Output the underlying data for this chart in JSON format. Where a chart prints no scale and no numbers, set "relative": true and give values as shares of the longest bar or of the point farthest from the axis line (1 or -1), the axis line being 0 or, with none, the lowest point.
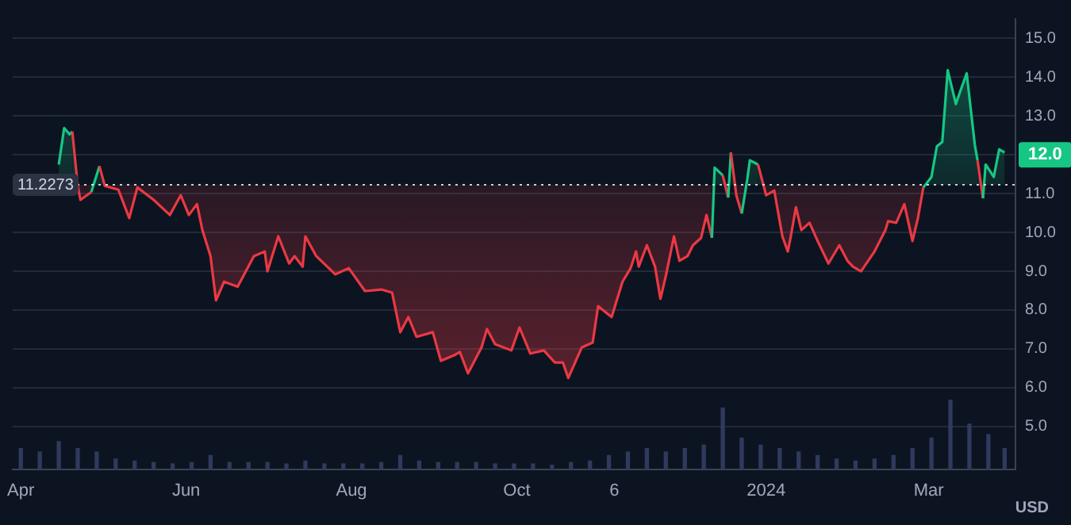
{
  "chart_data": [
    {
      "type": "area",
      "ylabel": "USD",
      "x": [
        "2023-04-15",
        "2023-04-17",
        "2023-04-19",
        "2023-04-20",
        "2023-04-22",
        "2023-04-23",
        "2023-04-27",
        "2023-04-30",
        "2023-05-02",
        "2023-05-07",
        "2023-05-11",
        "2023-05-14",
        "2023-05-20",
        "2023-05-26",
        "2023-05-30",
        "2023-06-02",
        "2023-06-05",
        "2023-06-07",
        "2023-06-10",
        "2023-06-12",
        "2023-06-15",
        "2023-06-20",
        "2023-06-26",
        "2023-06-30",
        "2023-07-01",
        "2023-07-05",
        "2023-07-09",
        "2023-07-11",
        "2023-07-14",
        "2023-07-15",
        "2023-07-19",
        "2023-07-26",
        "2023-07-31",
        "2023-08-06",
        "2023-08-12",
        "2023-08-16",
        "2023-08-19",
        "2023-08-22",
        "2023-08-25",
        "2023-08-31",
        "2023-09-03",
        "2023-09-08",
        "2023-09-10",
        "2023-09-13",
        "2023-09-18",
        "2023-09-20",
        "2023-09-23",
        "2023-09-29",
        "2023-10-02",
        "2023-10-06",
        "2023-10-11",
        "2023-10-15",
        "2023-10-18",
        "2023-10-20",
        "2023-10-25",
        "2023-10-29",
        "2023-10-31",
        "2023-11-05",
        "2023-11-09",
        "2023-11-12",
        "2023-11-14",
        "2023-11-15",
        "2023-11-18",
        "2023-11-21",
        "2023-11-23",
        "2023-11-25",
        "2023-11-28",
        "2023-11-30",
        "2023-12-03",
        "2023-12-05",
        "2023-12-08",
        "2023-12-10",
        "2023-12-12",
        "2023-12-13",
        "2023-12-16",
        "2023-12-18",
        "2023-12-19",
        "2023-12-21",
        "2023-12-23",
        "2023-12-25",
        "2023-12-26",
        "2023-12-29",
        "2024-01-01",
        "2024-01-04",
        "2024-01-07",
        "2024-01-09",
        "2024-01-10",
        "2024-01-12",
        "2024-01-14",
        "2024-01-17",
        "2024-01-20",
        "2024-01-24",
        "2024-01-28",
        "2024-01-31",
        "2024-02-02",
        "2024-02-05",
        "2024-02-10",
        "2024-02-14",
        "2024-02-15",
        "2024-02-18",
        "2024-02-21",
        "2024-02-24",
        "2024-02-26",
        "2024-02-28",
        "2024-03-02",
        "2024-03-04",
        "2024-03-06",
        "2024-03-08",
        "2024-03-11",
        "2024-03-13",
        "2024-03-15",
        "2024-03-18",
        "2024-03-19",
        "2024-03-21",
        "2024-03-22",
        "2024-03-25",
        "2024-03-27",
        "2024-03-29"
      ],
      "series": [
        {
          "values": [
            11.75,
            12.69,
            12.53,
            12.6,
            11.2,
            10.84,
            11.04,
            11.71,
            11.2,
            11.1,
            10.37,
            11.16,
            10.84,
            10.45,
            10.96,
            10.45,
            10.73,
            10.06,
            9.39,
            8.25,
            8.73,
            8.6,
            9.39,
            9.51,
            9.0,
            9.9,
            9.2,
            9.39,
            9.12,
            9.9,
            9.39,
            8.92,
            9.08,
            8.49,
            8.53,
            8.45,
            7.43,
            7.82,
            7.31,
            7.43,
            6.69,
            6.84,
            6.92,
            6.37,
            7.04,
            7.51,
            7.12,
            6.96,
            7.55,
            6.88,
            6.96,
            6.65,
            6.65,
            6.25,
            7.04,
            7.16,
            8.1,
            7.82,
            8.73,
            9.08,
            9.51,
            9.12,
            9.67,
            9.12,
            8.29,
            8.88,
            9.9,
            9.27,
            9.39,
            9.67,
            9.86,
            10.45,
            9.86,
            11.67,
            11.47,
            10.9,
            12.06,
            10.96,
            10.49,
            11.35,
            11.86,
            11.75,
            10.96,
            11.08,
            9.9,
            9.51,
            9.86,
            10.65,
            10.06,
            10.25,
            9.78,
            9.2,
            9.67,
            9.27,
            9.12,
            9.0,
            9.51,
            10.06,
            10.29,
            10.25,
            10.73,
            9.78,
            10.37,
            11.16,
            11.43,
            12.22,
            12.33,
            14.18,
            13.31,
            13.71,
            14.1,
            12.26,
            11.86,
            10.88,
            11.75,
            11.43,
            12.14,
            12.06
          ],
          "colors": [
            "#16c784",
            "#16c784",
            "#16c784",
            "#16c784",
            "#ea3943",
            "#ea3943",
            "#ea3943",
            "#16c784",
            "#ea3943",
            "#ea3943",
            "#ea3943",
            "#ea3943",
            "#ea3943",
            "#ea3943",
            "#ea3943",
            "#ea3943",
            "#ea3943",
            "#ea3943",
            "#ea3943",
            "#ea3943",
            "#ea3943",
            "#ea3943",
            "#ea3943",
            "#ea3943",
            "#ea3943",
            "#ea3943",
            "#ea3943",
            "#ea3943",
            "#ea3943",
            "#ea3943",
            "#ea3943",
            "#ea3943",
            "#ea3943",
            "#ea3943",
            "#ea3943",
            "#ea3943",
            "#ea3943",
            "#ea3943",
            "#ea3943",
            "#ea3943",
            "#ea3943",
            "#ea3943",
            "#ea3943",
            "#ea3943",
            "#ea3943",
            "#ea3943",
            "#ea3943",
            "#ea3943",
            "#ea3943",
            "#ea3943",
            "#ea3943",
            "#ea3943",
            "#ea3943",
            "#ea3943",
            "#ea3943",
            "#ea3943",
            "#ea3943",
            "#ea3943",
            "#ea3943",
            "#ea3943",
            "#ea3943",
            "#ea3943",
            "#ea3943",
            "#ea3943",
            "#ea3943",
            "#ea3943",
            "#ea3943",
            "#ea3943",
            "#ea3943",
            "#ea3943",
            "#ea3943",
            "#ea3943",
            "#ea3943",
            "#16c784",
            "#16c784",
            "#ea3943",
            "#16c784",
            "#ea3943",
            "#ea3943",
            "#16c784",
            "#16c784",
            "#16c784",
            "#ea3943",
            "#ea3943",
            "#ea3943",
            "#ea3943",
            "#ea3943",
            "#ea3943",
            "#ea3943",
            "#ea3943",
            "#ea3943",
            "#ea3943",
            "#ea3943",
            "#ea3943",
            "#ea3943",
            "#ea3943",
            "#ea3943",
            "#ea3943",
            "#ea3943",
            "#ea3943",
            "#ea3943",
            "#ea3943",
            "#ea3943",
            "#ea3943",
            "#16c784",
            "#16c784",
            "#16c784",
            "#16c784",
            "#16c784",
            "#16c784",
            "#16c784",
            "#16c784",
            "#16c784",
            "#ea3943",
            "#16c784",
            "#16c784",
            "#16c784",
            "#16c784"
          ]
        }
      ],
      "xlim": [
        "2023-03-29",
        "2024-04-02"
      ],
      "xticks": [
        {
          "value": "2023-04-01",
          "label": "Apr"
        },
        {
          "value": "2023-06-01",
          "label": "Jun"
        },
        {
          "value": "2023-08-01",
          "label": "Aug"
        },
        {
          "value": "2023-10-01",
          "label": "Oct"
        },
        {
          "value": "2023-11-06",
          "label": "6"
        },
        {
          "value": "2024-01-01",
          "label": "2024"
        },
        {
          "value": "2024-03-01",
          "label": "Mar"
        }
      ],
      "ylim": [
        3.9,
        15.5
      ],
      "yticks": [
        {
          "value": 5,
          "label": "5.0"
        },
        {
          "value": 6,
          "label": "6.0"
        },
        {
          "value": 7,
          "label": "7.0"
        },
        {
          "value": 8,
          "label": "8.0"
        },
        {
          "value": 9,
          "label": "9.0"
        },
        {
          "value": 10,
          "label": "10.0"
        },
        {
          "value": 11,
          "label": "11.0"
        },
        {
          "value": 12,
          "label": null
        },
        {
          "value": 13,
          "label": "13.0"
        },
        {
          "value": 14,
          "label": "14.0"
        },
        {
          "value": 15,
          "label": "15.0"
        }
      ],
      "ref_lines": [
        {
          "axis": "y",
          "value": 11.2273,
          "label": "11.2273",
          "color": "#ffffff",
          "line_style": "dotted"
        }
      ],
      "annotations": [
        {
          "text": "12.0",
          "y": 12.0
        }
      ],
      "grid": "y",
      "legend": false,
      "marker": "none",
      "line_style": "solid"
    },
    {
      "type": "bar",
      "relative": true,
      "color": "#2f3a5e",
      "legend": false,
      "x": [
        "2023-04-01",
        "2023-04-08",
        "2023-04-15",
        "2023-04-22",
        "2023-04-29",
        "2023-05-06",
        "2023-05-13",
        "2023-05-20",
        "2023-05-27",
        "2023-06-03",
        "2023-06-10",
        "2023-06-17",
        "2023-06-24",
        "2023-07-01",
        "2023-07-08",
        "2023-07-15",
        "2023-07-22",
        "2023-07-29",
        "2023-08-05",
        "2023-08-12",
        "2023-08-19",
        "2023-08-26",
        "2023-09-02",
        "2023-09-09",
        "2023-09-16",
        "2023-09-23",
        "2023-09-30",
        "2023-10-07",
        "2023-10-14",
        "2023-10-21",
        "2023-10-28",
        "2023-11-04",
        "2023-11-11",
        "2023-11-18",
        "2023-11-25",
        "2023-12-02",
        "2023-12-09",
        "2023-12-16",
        "2023-12-23",
        "2023-12-30",
        "2024-01-06",
        "2024-01-13",
        "2024-01-20",
        "2024-01-27",
        "2024-02-03",
        "2024-02-10",
        "2024-02-17",
        "2024-02-24",
        "2024-03-02",
        "2024-03-09",
        "2024-03-16",
        "2024-03-23",
        "2024-03-29"
      ],
      "values": [
        0.3,
        0.25,
        0.4,
        0.3,
        0.25,
        0.15,
        0.12,
        0.1,
        0.08,
        0.1,
        0.2,
        0.1,
        0.1,
        0.1,
        0.08,
        0.12,
        0.08,
        0.08,
        0.08,
        0.1,
        0.2,
        0.12,
        0.1,
        0.1,
        0.1,
        0.08,
        0.08,
        0.08,
        0.06,
        0.1,
        0.12,
        0.2,
        0.25,
        0.3,
        0.25,
        0.3,
        0.35,
        0.88,
        0.45,
        0.35,
        0.3,
        0.25,
        0.2,
        0.15,
        0.12,
        0.15,
        0.2,
        0.3,
        0.45,
        1,
        0.65,
        0.5,
        0.3
      ],
      "xlim": [
        "2023-03-29",
        "2024-04-02"
      ]
    }
  ]
}
